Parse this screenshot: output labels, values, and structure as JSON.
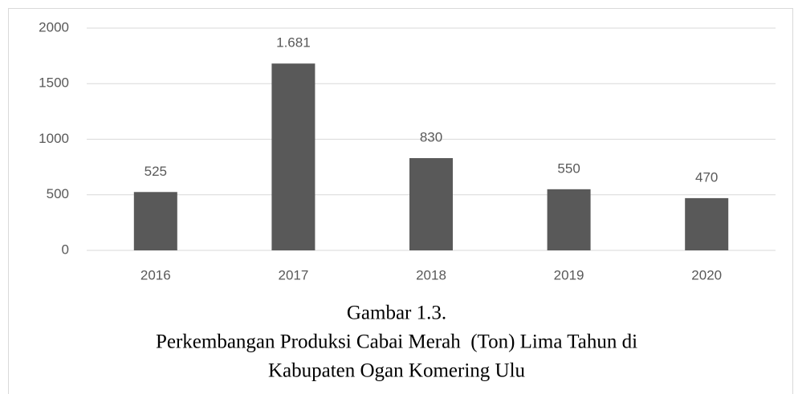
{
  "chart_data": {
    "type": "bar",
    "categories": [
      "2016",
      "2017",
      "2018",
      "2019",
      "2020"
    ],
    "values": [
      525,
      1681,
      830,
      550,
      470
    ],
    "value_labels": [
      "525",
      "1.681",
      "830",
      "550",
      "470"
    ],
    "color": "#595959",
    "ylim": [
      0,
      2000
    ],
    "yticks": [
      0,
      500,
      1000,
      1500,
      2000
    ],
    "grid": true,
    "caption": [
      "Gambar 1.3.",
      "Perkembangan Produksi Cabai Merah  (Ton) Lima Tahun di",
      "Kabupaten Ogan Komering Ulu"
    ]
  }
}
